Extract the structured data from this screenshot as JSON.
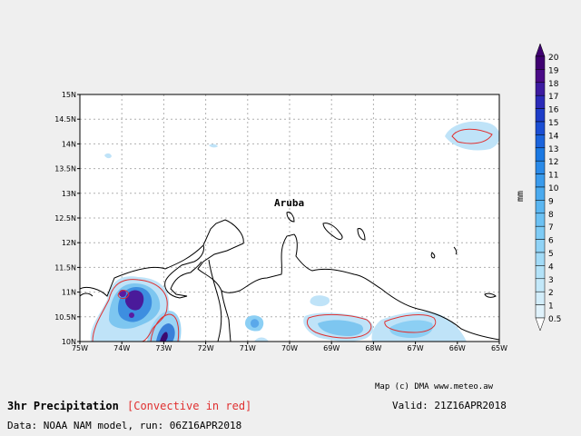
{
  "title": "3hr Precipitation",
  "subtitle": "[Convective in red]",
  "valid_label": "Valid: 21Z16APR2018",
  "source_label": "Data: NOAA NAM model, run: 06Z16APR2018",
  "credit_label": "Map (c) DMA www.meteo.aw",
  "place_label": "Aruba",
  "legend": {
    "units": "mm",
    "levels": [
      "20",
      "19",
      "18",
      "17",
      "16",
      "15",
      "14",
      "13",
      "12",
      "11",
      "10",
      "9",
      "8",
      "7",
      "6",
      "5",
      "4",
      "3",
      "2",
      "1",
      "0.5"
    ],
    "colors": [
      "#3f0070",
      "#4a0a86",
      "#3d1aa0",
      "#2a2ab8",
      "#1d3cc8",
      "#1b4ed4",
      "#1a63dc",
      "#1a78e2",
      "#2a8ae8",
      "#3a9bec",
      "#4aaaef",
      "#5ab6f1",
      "#6cc1f3",
      "#7ecbf5",
      "#90d3f6",
      "#a2dbf7",
      "#b3e2f8",
      "#c3e8f9",
      "#d2edfa",
      "#e0f2fb",
      "#ffffff"
    ]
  },
  "lat_labels": [
    "15N",
    "14.5N",
    "14N",
    "13.5N",
    "13N",
    "12.5N",
    "12N",
    "11.5N",
    "11N",
    "10.5N",
    "10N"
  ],
  "lon_labels": [
    "75W",
    "74W",
    "73W",
    "72W",
    "71W",
    "70W",
    "69W",
    "68W",
    "67W",
    "66W",
    "65W"
  ],
  "colors": {
    "convective": "#e03030",
    "coast": "#000000",
    "grid": "#b0b0b0",
    "map_bg": "#ffffff"
  }
}
